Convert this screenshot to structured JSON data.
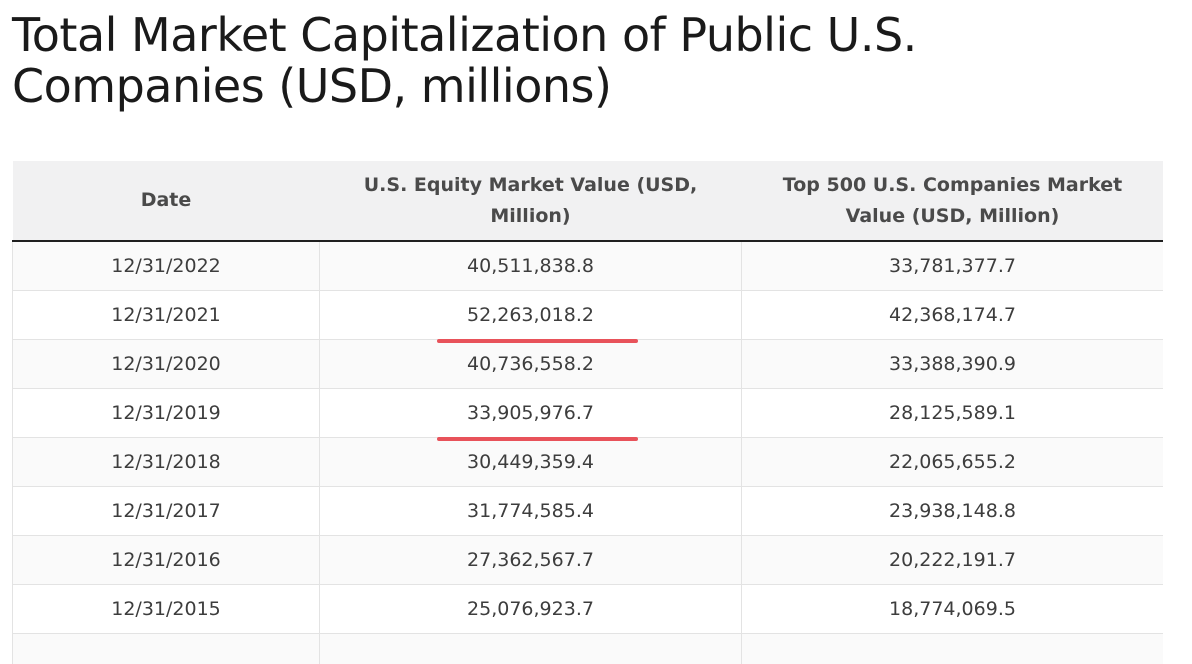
{
  "title": "Total Market Capitalization of Public U.S. Companies (USD, millions)",
  "table": {
    "headers": {
      "date": "Date",
      "us_equity": "U.S. Equity Market Value (USD, Million)",
      "top500": "Top 500 U.S. Companies Market Value (USD, Million)"
    },
    "rows": [
      {
        "date": "12/31/2022",
        "us_equity": "40,511,838.8",
        "top500": "33,781,377.7",
        "highlighted": false
      },
      {
        "date": "12/31/2021",
        "us_equity": "52,263,018.2",
        "top500": "42,368,174.7",
        "highlighted": true
      },
      {
        "date": "12/31/2020",
        "us_equity": "40,736,558.2",
        "top500": "33,388,390.9",
        "highlighted": false
      },
      {
        "date": "12/31/2019",
        "us_equity": "33,905,976.7",
        "top500": "28,125,589.1",
        "highlighted": true
      },
      {
        "date": "12/31/2018",
        "us_equity": "30,449,359.4",
        "top500": "22,065,655.2",
        "highlighted": false
      },
      {
        "date": "12/31/2017",
        "us_equity": "31,774,585.4",
        "top500": "23,938,148.8",
        "highlighted": false
      },
      {
        "date": "12/31/2016",
        "us_equity": "27,362,567.7",
        "top500": "20,222,191.7",
        "highlighted": false
      },
      {
        "date": "12/31/2015",
        "us_equity": "25,076,923.7",
        "top500": "18,774,069.5",
        "highlighted": false
      }
    ]
  },
  "colors": {
    "header_bg": "#f1f1f2",
    "underline": "#e8525a",
    "row_alt": "#fafafa"
  }
}
